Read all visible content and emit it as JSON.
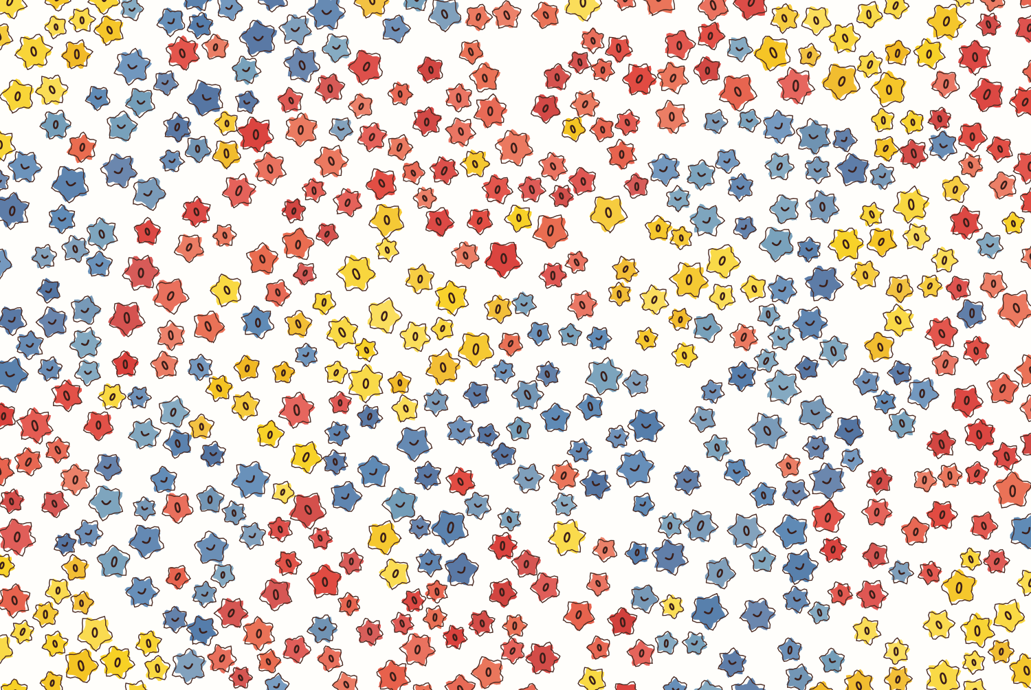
{
  "artwork": {
    "kind": "watercolor floral pattern",
    "background_color": "#ffffff",
    "outline_color": "#4a2a22",
    "center_color": "#3b1f1a",
    "palette": {
      "yellow": [
        "#f7cf1c",
        "#f4c21a",
        "#f9d73a",
        "#f0b61c"
      ],
      "red": [
        "#e0443a",
        "#d93a35",
        "#e65b45",
        "#e8674a",
        "#cf3a36"
      ],
      "blue": [
        "#4f79a8",
        "#5a86b3",
        "#6a8fb0",
        "#4d6f9e",
        "#6e9ab6"
      ]
    },
    "flowers": [
      {
        "id": "f-yellow-1",
        "color": "yellow"
      },
      {
        "id": "f-red-1",
        "color": "red"
      },
      {
        "id": "f-blue-1",
        "color": "blue"
      }
    ]
  }
}
